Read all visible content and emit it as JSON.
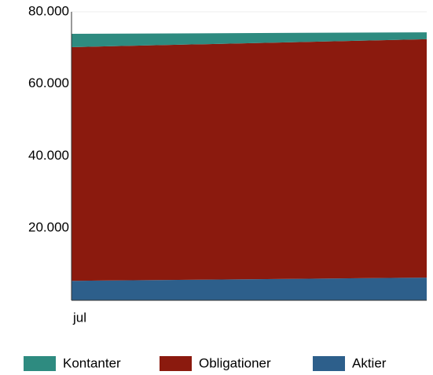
{
  "chart_data": {
    "type": "stacked_area",
    "categories": [
      "jul",
      null
    ],
    "series": [
      {
        "name": "Kontanter",
        "color": "#2e8b80",
        "values": [
          3700,
          1900
        ]
      },
      {
        "name": "Obligationer",
        "color": "#8b1a0e",
        "values": [
          64800,
          66100
        ]
      },
      {
        "name": "Aktier",
        "color": "#2d5f8b",
        "values": [
          5400,
          6300
        ]
      }
    ],
    "ylim": [
      0,
      80000
    ],
    "yticks": [
      {
        "value": 20000,
        "label": "20.000"
      },
      {
        "value": 40000,
        "label": "40.000"
      },
      {
        "value": 60000,
        "label": "60.000"
      },
      {
        "value": 80000,
        "label": "80.000"
      }
    ],
    "grid": true
  }
}
